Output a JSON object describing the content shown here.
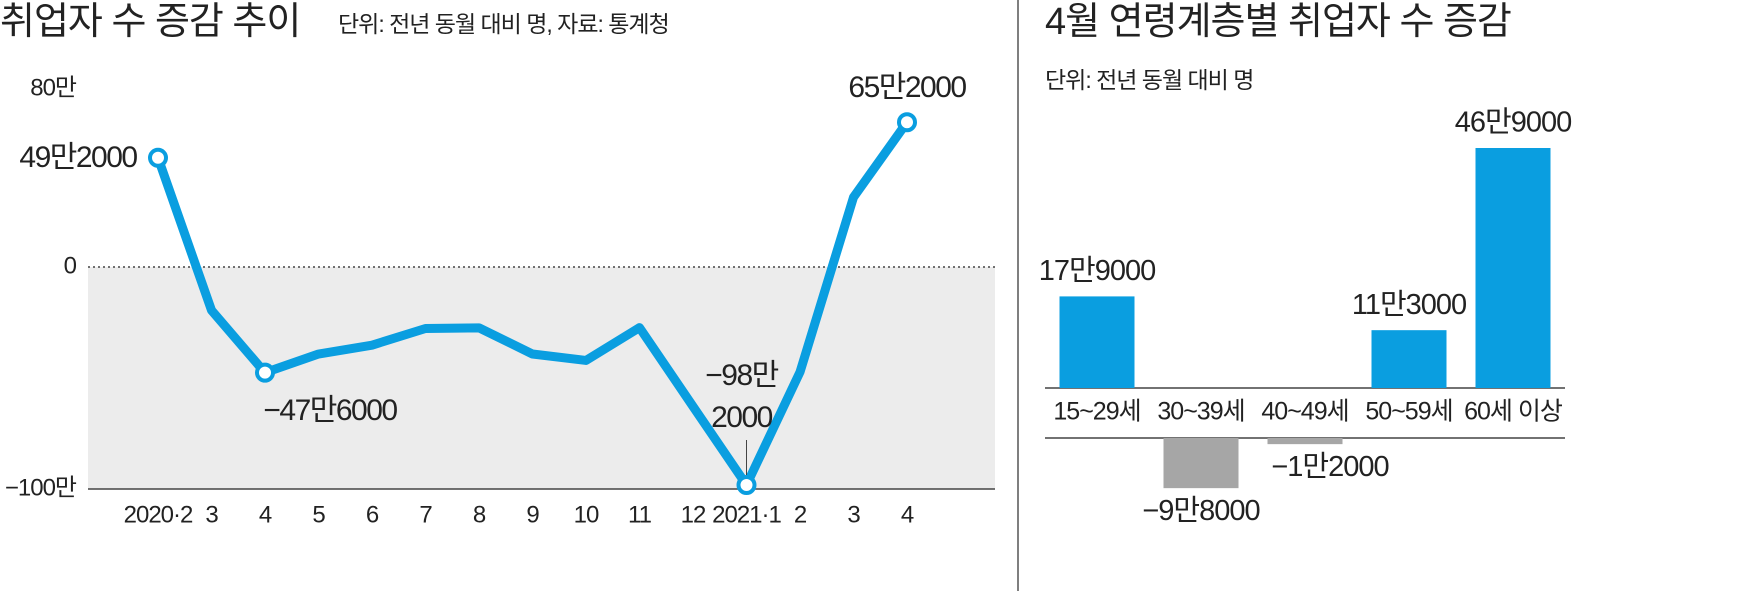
{
  "chart_data": [
    {
      "type": "line",
      "title": "취업자 수 증감 추이",
      "subtitle": "단위: 전년 동월 대비 명, 자료: 통계청",
      "categories": [
        "2020·2",
        "3",
        "4",
        "5",
        "6",
        "7",
        "8",
        "9",
        "10",
        "11",
        "12",
        "2021·1",
        "2",
        "3",
        "4"
      ],
      "series": [
        {
          "color": "#0a9ee0",
          "values": [
            492000,
            -195000,
            -476000,
            -392000,
            -352000,
            -277000,
            -274000,
            -392000,
            -421000,
            -273000,
            -628000,
            -982000,
            -473000,
            314000,
            652000
          ],
          "value_labels": [
            "49만2000",
            null,
            "−47만6000",
            null,
            null,
            null,
            null,
            null,
            null,
            null,
            null,
            "−98만\n2000",
            null,
            null,
            "65만2000"
          ]
        }
      ],
      "ylim": [
        -1000000,
        800000
      ],
      "yticks": [
        {
          "value": -1000000,
          "label": "−100만"
        },
        0,
        {
          "value": 800000,
          "label": "80만"
        }
      ]
    },
    {
      "type": "bar",
      "title": "4월 연령계층별 취업자 수 증감",
      "subtitle": "단위: 전년 동월 대비 명",
      "categories": [
        "15~29세",
        "30~39세",
        "40~49세",
        "50~59세",
        "60세 이상"
      ],
      "values": [
        179000,
        -98000,
        -12000,
        113000,
        469000
      ],
      "value_labels": [
        "17만9000",
        "−9만8000",
        "−1만2000",
        "11만3000",
        "46만9000"
      ],
      "colors": [
        "#0a9ee0",
        "#a6a6a6",
        "#a6a6a6",
        "#0a9ee0",
        "#0a9ee0"
      ]
    }
  ]
}
